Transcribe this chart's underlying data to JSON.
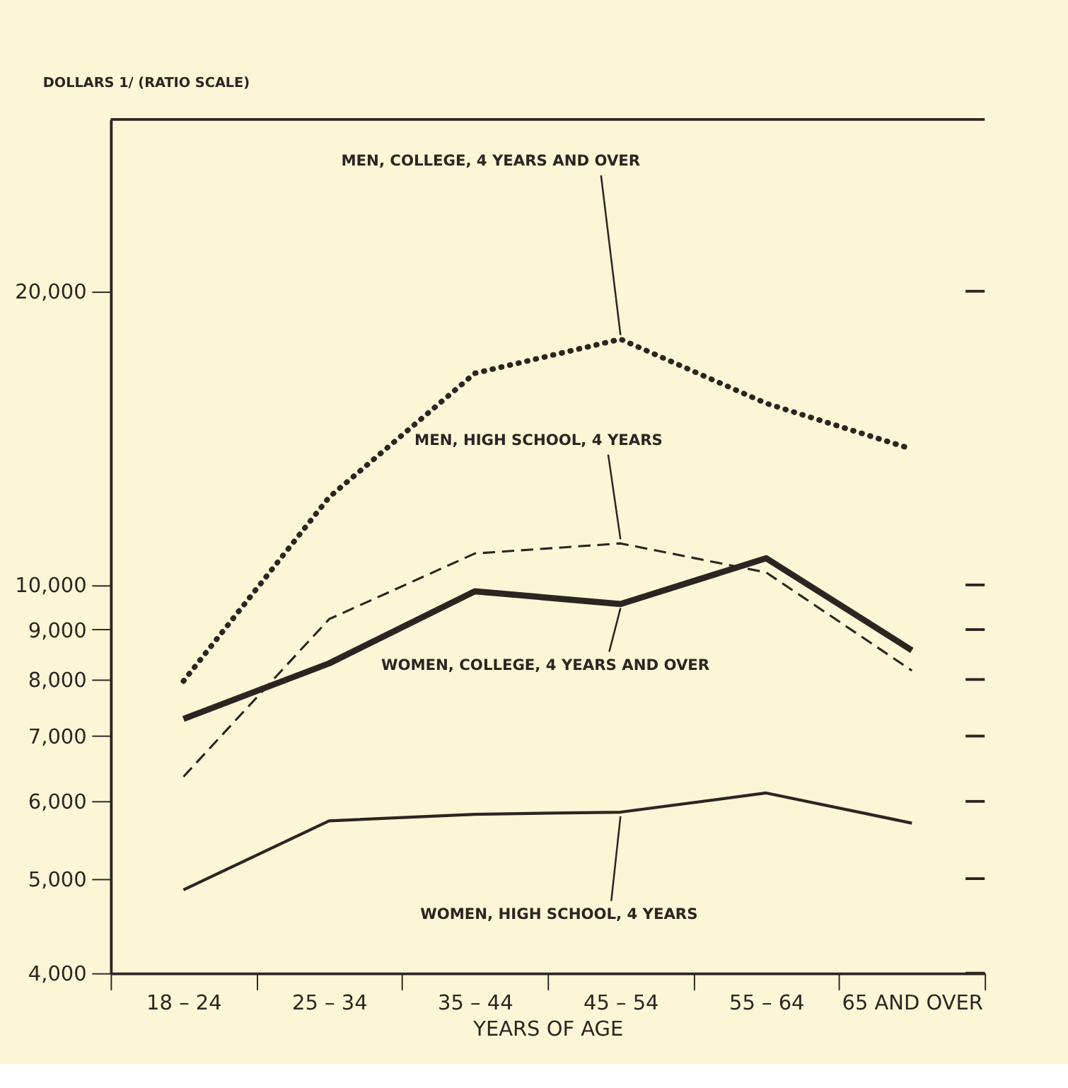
{
  "chart_data": {
    "type": "line",
    "ylabel": "DOLLARS 1/ (RATIO SCALE)",
    "xlabel": "YEARS OF AGE",
    "categories": [
      "18 – 24",
      "25 – 34",
      "35 – 44",
      "45 – 54",
      "55 – 64",
      "65 AND OVER"
    ],
    "log": true,
    "ylim": [
      4000,
      30000
    ],
    "yticks": [
      {
        "value": 4000,
        "label": "4,000"
      },
      {
        "value": 5000,
        "label": "5,000"
      },
      {
        "value": 6000,
        "label": "6,000"
      },
      {
        "value": 7000,
        "label": "7,000"
      },
      {
        "value": 8000,
        "label": "8,000"
      },
      {
        "value": 9000,
        "label": "9,000"
      },
      {
        "value": 10000,
        "label": "10,000"
      },
      {
        "value": 20000,
        "label": "20,000"
      }
    ],
    "marker": "none",
    "series": [
      {
        "name": "MEN, COLLEGE, 4 YEARS AND OVER",
        "color": "#2b2522",
        "line_style": "dotted",
        "values": [
          7970,
          12300,
          16480,
          17860,
          15350,
          13780
        ]
      },
      {
        "name": "MEN, HIGH SCHOOL, 4 YEARS",
        "color": "#2b2522",
        "line_style": "dashed",
        "values": [
          6360,
          9225,
          10770,
          11030,
          10300,
          8170
        ]
      },
      {
        "name": "WOMEN, COLLEGE, 4 YEARS AND OVER",
        "color": "#2b2522",
        "line_style": "solid",
        "values": [
          7290,
          8310,
          9850,
          9560,
          10650,
          8570
        ]
      },
      {
        "name": "WOMEN, HIGH SCHOOL, 4 YEARS",
        "color": "#2b2522",
        "line_style": "solid",
        "values": [
          4870,
          5730,
          5820,
          5850,
          6120,
          5700
        ]
      }
    ]
  }
}
